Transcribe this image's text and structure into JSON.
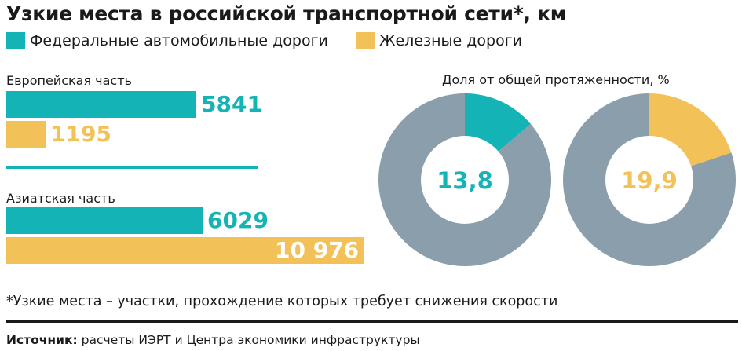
{
  "title": "Узкие места в российской транспортной сети*, км",
  "colors": {
    "road": "#14b3b5",
    "rail": "#f2c157",
    "rest": "#8a9fab"
  },
  "chart_data": [
    {
      "type": "bar",
      "orientation": "horizontal",
      "categories": [
        "Европейская часть",
        "Азиатская часть"
      ],
      "series": [
        {
          "name": "Федеральные автомобильные дороги",
          "values": [
            5841,
            6029
          ],
          "labels": [
            "5841",
            "6029"
          ]
        },
        {
          "name": "Железные дороги",
          "values": [
            1195,
            10976
          ],
          "labels": [
            "1195",
            "10 976"
          ]
        }
      ],
      "xlim": [
        0,
        10976
      ]
    },
    {
      "type": "pie",
      "title": "Доля от общей протяженности, %",
      "donuts": [
        {
          "series": "Федеральные автомобильные дороги",
          "value": 13.8,
          "label": "13,8"
        },
        {
          "series": "Железные дороги",
          "value": 19.9,
          "label": "19,9"
        }
      ]
    }
  ],
  "footnote": "*Узкие места – участки, прохождение которых требует снижения скорости",
  "source": {
    "label": "Источник:",
    "text": "расчеты ИЭРТ и Центра экономики инфраструктуры"
  }
}
